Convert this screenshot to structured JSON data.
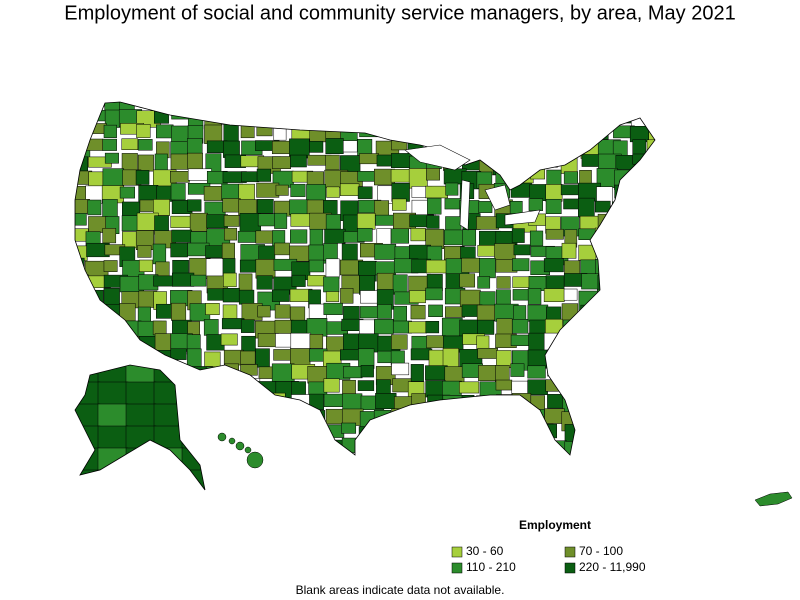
{
  "title": "Employment of social and community service managers, by area, May 2021",
  "legend": {
    "title": "Employment",
    "items": [
      {
        "label": "30 - 60",
        "color": "#a6cf3c"
      },
      {
        "label": "70 - 100",
        "color": "#6f8f2a"
      },
      {
        "label": "110 - 210",
        "color": "#2c8c2c"
      },
      {
        "label": "220 - 11,990",
        "color": "#0b5e12"
      }
    ]
  },
  "note": "Blank areas indicate data not available."
}
